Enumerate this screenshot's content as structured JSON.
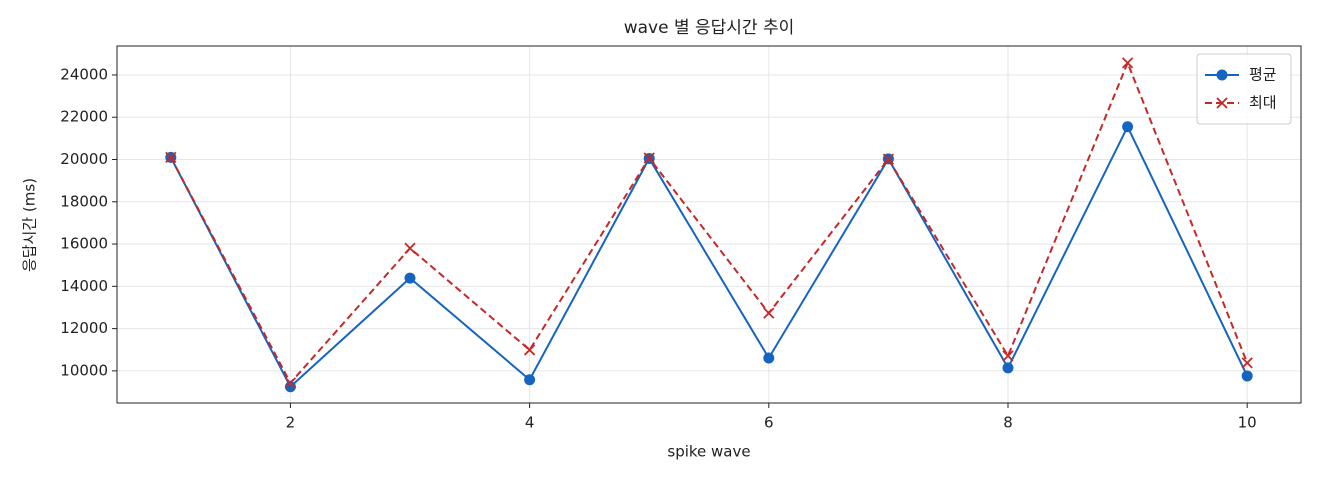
{
  "chart_data": {
    "type": "line",
    "title": "wave 별 응답시간 추이",
    "xlabel": "spike wave",
    "ylabel": "응답시간 (ms)",
    "x": [
      1,
      2,
      3,
      4,
      5,
      6,
      7,
      8,
      9,
      10
    ],
    "series": [
      {
        "name": "평균",
        "color": "#1565c0",
        "linestyle": "solid",
        "marker": "o",
        "values": [
          20100,
          9250,
          14390,
          9580,
          20050,
          10610,
          20030,
          10140,
          21550,
          9760
        ]
      },
      {
        "name": "최대",
        "color": "#c62828",
        "linestyle": "dashed",
        "marker": "x",
        "values": [
          20100,
          9430,
          15800,
          10990,
          20070,
          12730,
          20020,
          10710,
          24570,
          10380
        ]
      }
    ],
    "xlim": [
      0.55,
      10.45
    ],
    "xticks": [
      2,
      4,
      6,
      8,
      10
    ],
    "ylim": [
      8480,
      25370
    ],
    "yticks": [
      10000,
      12000,
      14000,
      16000,
      18000,
      20000,
      22000,
      24000
    ],
    "grid": true,
    "legend": "upper right"
  }
}
